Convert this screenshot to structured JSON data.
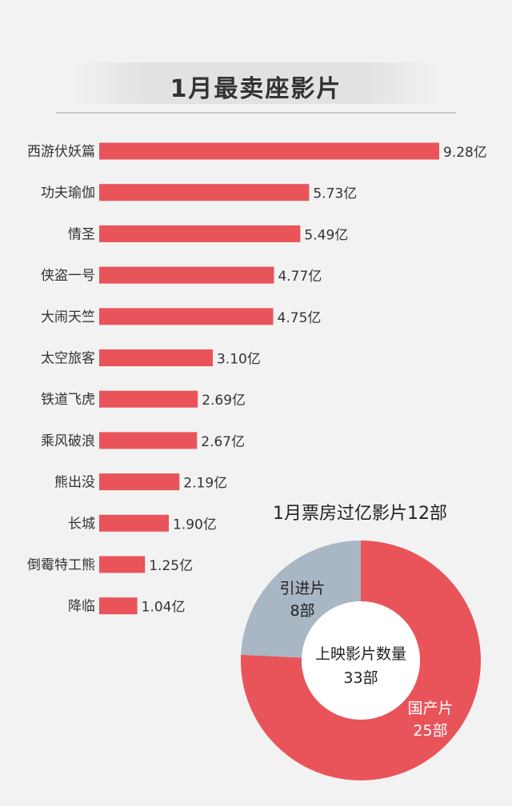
{
  "header": {
    "title": "1月最卖座影片"
  },
  "chart_data": [
    {
      "type": "bar",
      "orientation": "horizontal",
      "categories": [
        "西游伏妖篇",
        "功夫瑜伽",
        "情圣",
        "侠盗一号",
        "大闹天竺",
        "太空旅客",
        "铁道飞虎",
        "乘风破浪",
        "熊出没",
        "长城",
        "倒霉特工熊",
        "降临"
      ],
      "values": [
        9.28,
        5.73,
        5.49,
        4.77,
        4.75,
        3.1,
        2.69,
        2.67,
        2.19,
        1.9,
        1.25,
        1.04
      ],
      "data_labels": [
        "9.28亿",
        "5.73亿",
        "5.49亿",
        "4.77亿",
        "4.75亿",
        "3.10亿",
        "2.69亿",
        "2.67亿",
        "2.19亿",
        "1.90亿",
        "1.25亿",
        "1.04亿"
      ],
      "unit": "亿",
      "title": "1月最卖座影片",
      "color": "#e8545a",
      "grid": false
    },
    {
      "type": "pie",
      "style": "donut",
      "title": "1月票房过亿影片12部",
      "center_label": [
        "上映影片数量",
        "33部"
      ],
      "slices": [
        {
          "name": "国产片",
          "value": 25,
          "label": "25部",
          "color": "#e8545a"
        },
        {
          "name": "引进片",
          "value": 8,
          "label": "8部",
          "color": "#a9b6c3"
        }
      ]
    }
  ]
}
